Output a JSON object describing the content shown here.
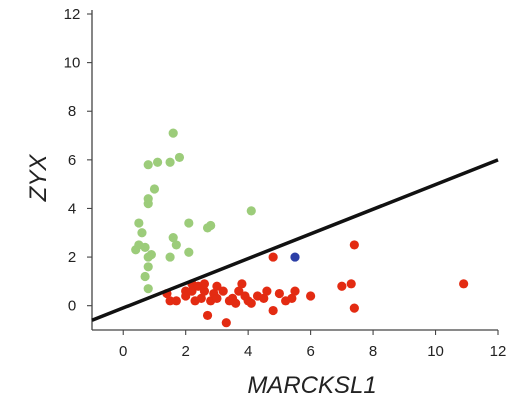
{
  "chart_data": {
    "type": "scatter",
    "xlabel": "MARCKSL1",
    "ylabel": "ZYX",
    "xlim": [
      -1,
      12
    ],
    "ylim": [
      -1,
      12
    ],
    "x_ticks": [
      0,
      2,
      4,
      6,
      8,
      10,
      12
    ],
    "y_ticks": [
      0,
      2,
      4,
      6,
      8,
      10,
      12
    ],
    "grid": false,
    "legend": "none",
    "colors": {
      "green": "#9ccc7a",
      "red": "#e32b12",
      "blue": "#2c3fa6",
      "line": "#111111"
    },
    "line": {
      "x": [
        -1,
        12
      ],
      "y": [
        -0.6,
        6.0
      ]
    },
    "series": [
      {
        "color": "#9ccc7a",
        "points": [
          [
            0.5,
            3.4
          ],
          [
            0.6,
            3.0
          ],
          [
            0.8,
            4.2
          ],
          [
            0.8,
            4.4
          ],
          [
            0.8,
            5.8
          ],
          [
            1.0,
            4.8
          ],
          [
            1.1,
            5.9
          ],
          [
            1.5,
            5.9
          ],
          [
            1.6,
            7.1
          ],
          [
            1.8,
            6.1
          ],
          [
            0.4,
            2.3
          ],
          [
            0.5,
            2.5
          ],
          [
            0.7,
            2.4
          ],
          [
            0.8,
            2.0
          ],
          [
            0.9,
            2.1
          ],
          [
            0.8,
            1.6
          ],
          [
            0.7,
            1.2
          ],
          [
            0.8,
            0.7
          ],
          [
            1.5,
            2.0
          ],
          [
            1.6,
            2.8
          ],
          [
            1.7,
            2.5
          ],
          [
            2.1,
            3.4
          ],
          [
            2.1,
            2.2
          ],
          [
            2.7,
            3.2
          ],
          [
            2.8,
            3.3
          ],
          [
            4.1,
            3.9
          ]
        ]
      },
      {
        "color": "#e32b12",
        "points": [
          [
            1.4,
            0.5
          ],
          [
            1.5,
            0.2
          ],
          [
            1.7,
            0.2
          ],
          [
            2.0,
            0.6
          ],
          [
            2.0,
            0.4
          ],
          [
            2.2,
            0.9
          ],
          [
            2.2,
            0.6
          ],
          [
            2.3,
            0.2
          ],
          [
            2.4,
            0.8
          ],
          [
            2.5,
            0.3
          ],
          [
            2.6,
            0.6
          ],
          [
            2.6,
            0.9
          ],
          [
            2.7,
            -0.4
          ],
          [
            2.8,
            0.2
          ],
          [
            2.9,
            0.5
          ],
          [
            3.0,
            0.8
          ],
          [
            3.0,
            0.3
          ],
          [
            3.2,
            0.6
          ],
          [
            3.3,
            -0.7
          ],
          [
            3.4,
            0.2
          ],
          [
            3.5,
            0.3
          ],
          [
            3.6,
            0.1
          ],
          [
            3.7,
            0.6
          ],
          [
            3.8,
            0.9
          ],
          [
            3.9,
            0.4
          ],
          [
            4.0,
            0.2
          ],
          [
            4.1,
            0.1
          ],
          [
            4.3,
            0.4
          ],
          [
            4.5,
            0.3
          ],
          [
            4.6,
            0.6
          ],
          [
            4.8,
            -0.2
          ],
          [
            4.8,
            2.0
          ],
          [
            5.0,
            0.5
          ],
          [
            5.2,
            0.2
          ],
          [
            5.4,
            0.3
          ],
          [
            5.5,
            0.6
          ],
          [
            6.0,
            0.4
          ],
          [
            7.0,
            0.8
          ],
          [
            7.3,
            0.9
          ],
          [
            7.4,
            2.5
          ],
          [
            7.4,
            -0.1
          ],
          [
            10.9,
            0.9
          ]
        ]
      },
      {
        "color": "#2c3fa6",
        "points": [
          [
            5.5,
            2.0
          ]
        ]
      }
    ]
  }
}
